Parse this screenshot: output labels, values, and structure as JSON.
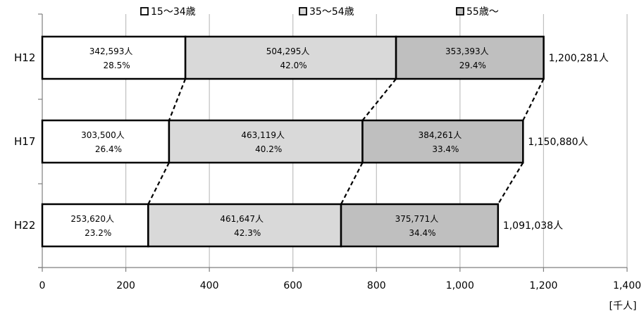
{
  "chart_data": {
    "type": "bar",
    "orientation": "horizontal",
    "stacked": true,
    "unit_label": "[千人]",
    "categories": [
      "H12",
      "H17",
      "H22"
    ],
    "series": [
      {
        "name": "15〜34歳",
        "color": "#ffffff",
        "values": [
          342.593,
          303.5,
          253.62
        ],
        "labels": [
          "342,593人",
          "303,500人",
          "253,620人"
        ],
        "percents": [
          "28.5%",
          "26.4%",
          "23.2%"
        ]
      },
      {
        "name": "35〜54歳",
        "color": "#d9d9d9",
        "values": [
          504.295,
          463.119,
          461.647
        ],
        "labels": [
          "504,295人",
          "463,119人",
          "461,647人"
        ],
        "percents": [
          "42.0%",
          "40.2%",
          "42.3%"
        ]
      },
      {
        "name": "55歳〜",
        "color": "#bfbfbf",
        "values": [
          353.393,
          384.261,
          375.771
        ],
        "labels": [
          "353,393人",
          "384,261人",
          "375,771人"
        ],
        "percents": [
          "29.4%",
          "33.4%",
          "34.4%"
        ]
      }
    ],
    "totals": [
      "1,200,281人",
      "1,150,880人",
      "1,091,038人"
    ],
    "xlim": [
      0,
      1400
    ],
    "xticks": [
      0,
      200,
      400,
      600,
      800,
      1000,
      1200,
      1400
    ],
    "xtick_labels": [
      "0",
      "200",
      "400",
      "600",
      "800",
      "1,000",
      "1,200",
      "1,400"
    ],
    "grid": true,
    "legend_position": "top",
    "series_lines": "dashed connectors between bar boundaries"
  }
}
